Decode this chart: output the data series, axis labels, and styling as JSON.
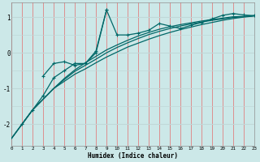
{
  "xlabel": "Humidex (Indice chaleur)",
  "ylabel": "",
  "bg_color": "#cce8e8",
  "grid_color_v": "#e08080",
  "grid_color_h": "#c0d8d8",
  "line_color": "#006868",
  "xlim": [
    0,
    23
  ],
  "ylim": [
    -2.6,
    1.4
  ],
  "xticks": [
    0,
    1,
    2,
    3,
    4,
    5,
    6,
    7,
    8,
    9,
    10,
    11,
    12,
    13,
    14,
    15,
    16,
    17,
    18,
    19,
    20,
    21,
    22,
    23
  ],
  "yticks": [
    -2,
    -1,
    0,
    1
  ],
  "line1_x": [
    0,
    1,
    2,
    3,
    4,
    5,
    6,
    7,
    8,
    9,
    10,
    11,
    12,
    13,
    14,
    15,
    16,
    17,
    18,
    19,
    20,
    21,
    22,
    23
  ],
  "line1_y": [
    -2.4,
    -2.0,
    -1.6,
    -1.3,
    -1.0,
    -0.8,
    -0.6,
    -0.45,
    -0.28,
    -0.12,
    0.02,
    0.16,
    0.27,
    0.38,
    0.48,
    0.57,
    0.65,
    0.72,
    0.79,
    0.85,
    0.91,
    0.96,
    1.0,
    1.03
  ],
  "line2_x": [
    0,
    1,
    2,
    3,
    4,
    5,
    6,
    7,
    8,
    9,
    10,
    11,
    12,
    13,
    14,
    15,
    16,
    17,
    18,
    19,
    20,
    21,
    22,
    23
  ],
  "line2_y": [
    -2.4,
    -2.0,
    -1.6,
    -1.3,
    -1.0,
    -0.75,
    -0.52,
    -0.35,
    -0.18,
    0.0,
    0.15,
    0.28,
    0.4,
    0.51,
    0.6,
    0.68,
    0.75,
    0.81,
    0.86,
    0.91,
    0.95,
    0.99,
    1.01,
    1.04
  ],
  "line3_x": [
    0,
    1,
    2,
    3,
    4,
    5,
    6,
    7,
    8,
    9,
    10,
    11,
    12,
    13,
    14,
    15,
    16,
    17,
    18,
    19,
    20,
    21,
    22,
    23
  ],
  "line3_y": [
    -2.4,
    -2.0,
    -1.6,
    -1.3,
    -1.0,
    -0.72,
    -0.48,
    -0.28,
    -0.1,
    0.08,
    0.22,
    0.35,
    0.47,
    0.57,
    0.66,
    0.73,
    0.79,
    0.84,
    0.89,
    0.93,
    0.97,
    1.01,
    1.02,
    1.04
  ],
  "line4_x": [
    1,
    2,
    3,
    4,
    5,
    6,
    7,
    8,
    9,
    10,
    11,
    12,
    13,
    14,
    15,
    16,
    17,
    18,
    19,
    20,
    21,
    22,
    23
  ],
  "line4_y": [
    -2.0,
    -1.6,
    -1.2,
    -0.7,
    -0.5,
    -0.3,
    -0.3,
    0.0,
    1.2,
    0.5,
    0.5,
    0.55,
    0.63,
    0.82,
    0.75,
    0.68,
    0.77,
    0.85,
    0.95,
    1.05,
    1.1,
    1.06,
    1.04
  ],
  "line5_x": [
    3,
    4,
    5,
    6,
    7,
    8,
    9
  ],
  "line5_y": [
    -0.65,
    -0.3,
    -0.25,
    -0.35,
    -0.3,
    0.05,
    1.2
  ]
}
